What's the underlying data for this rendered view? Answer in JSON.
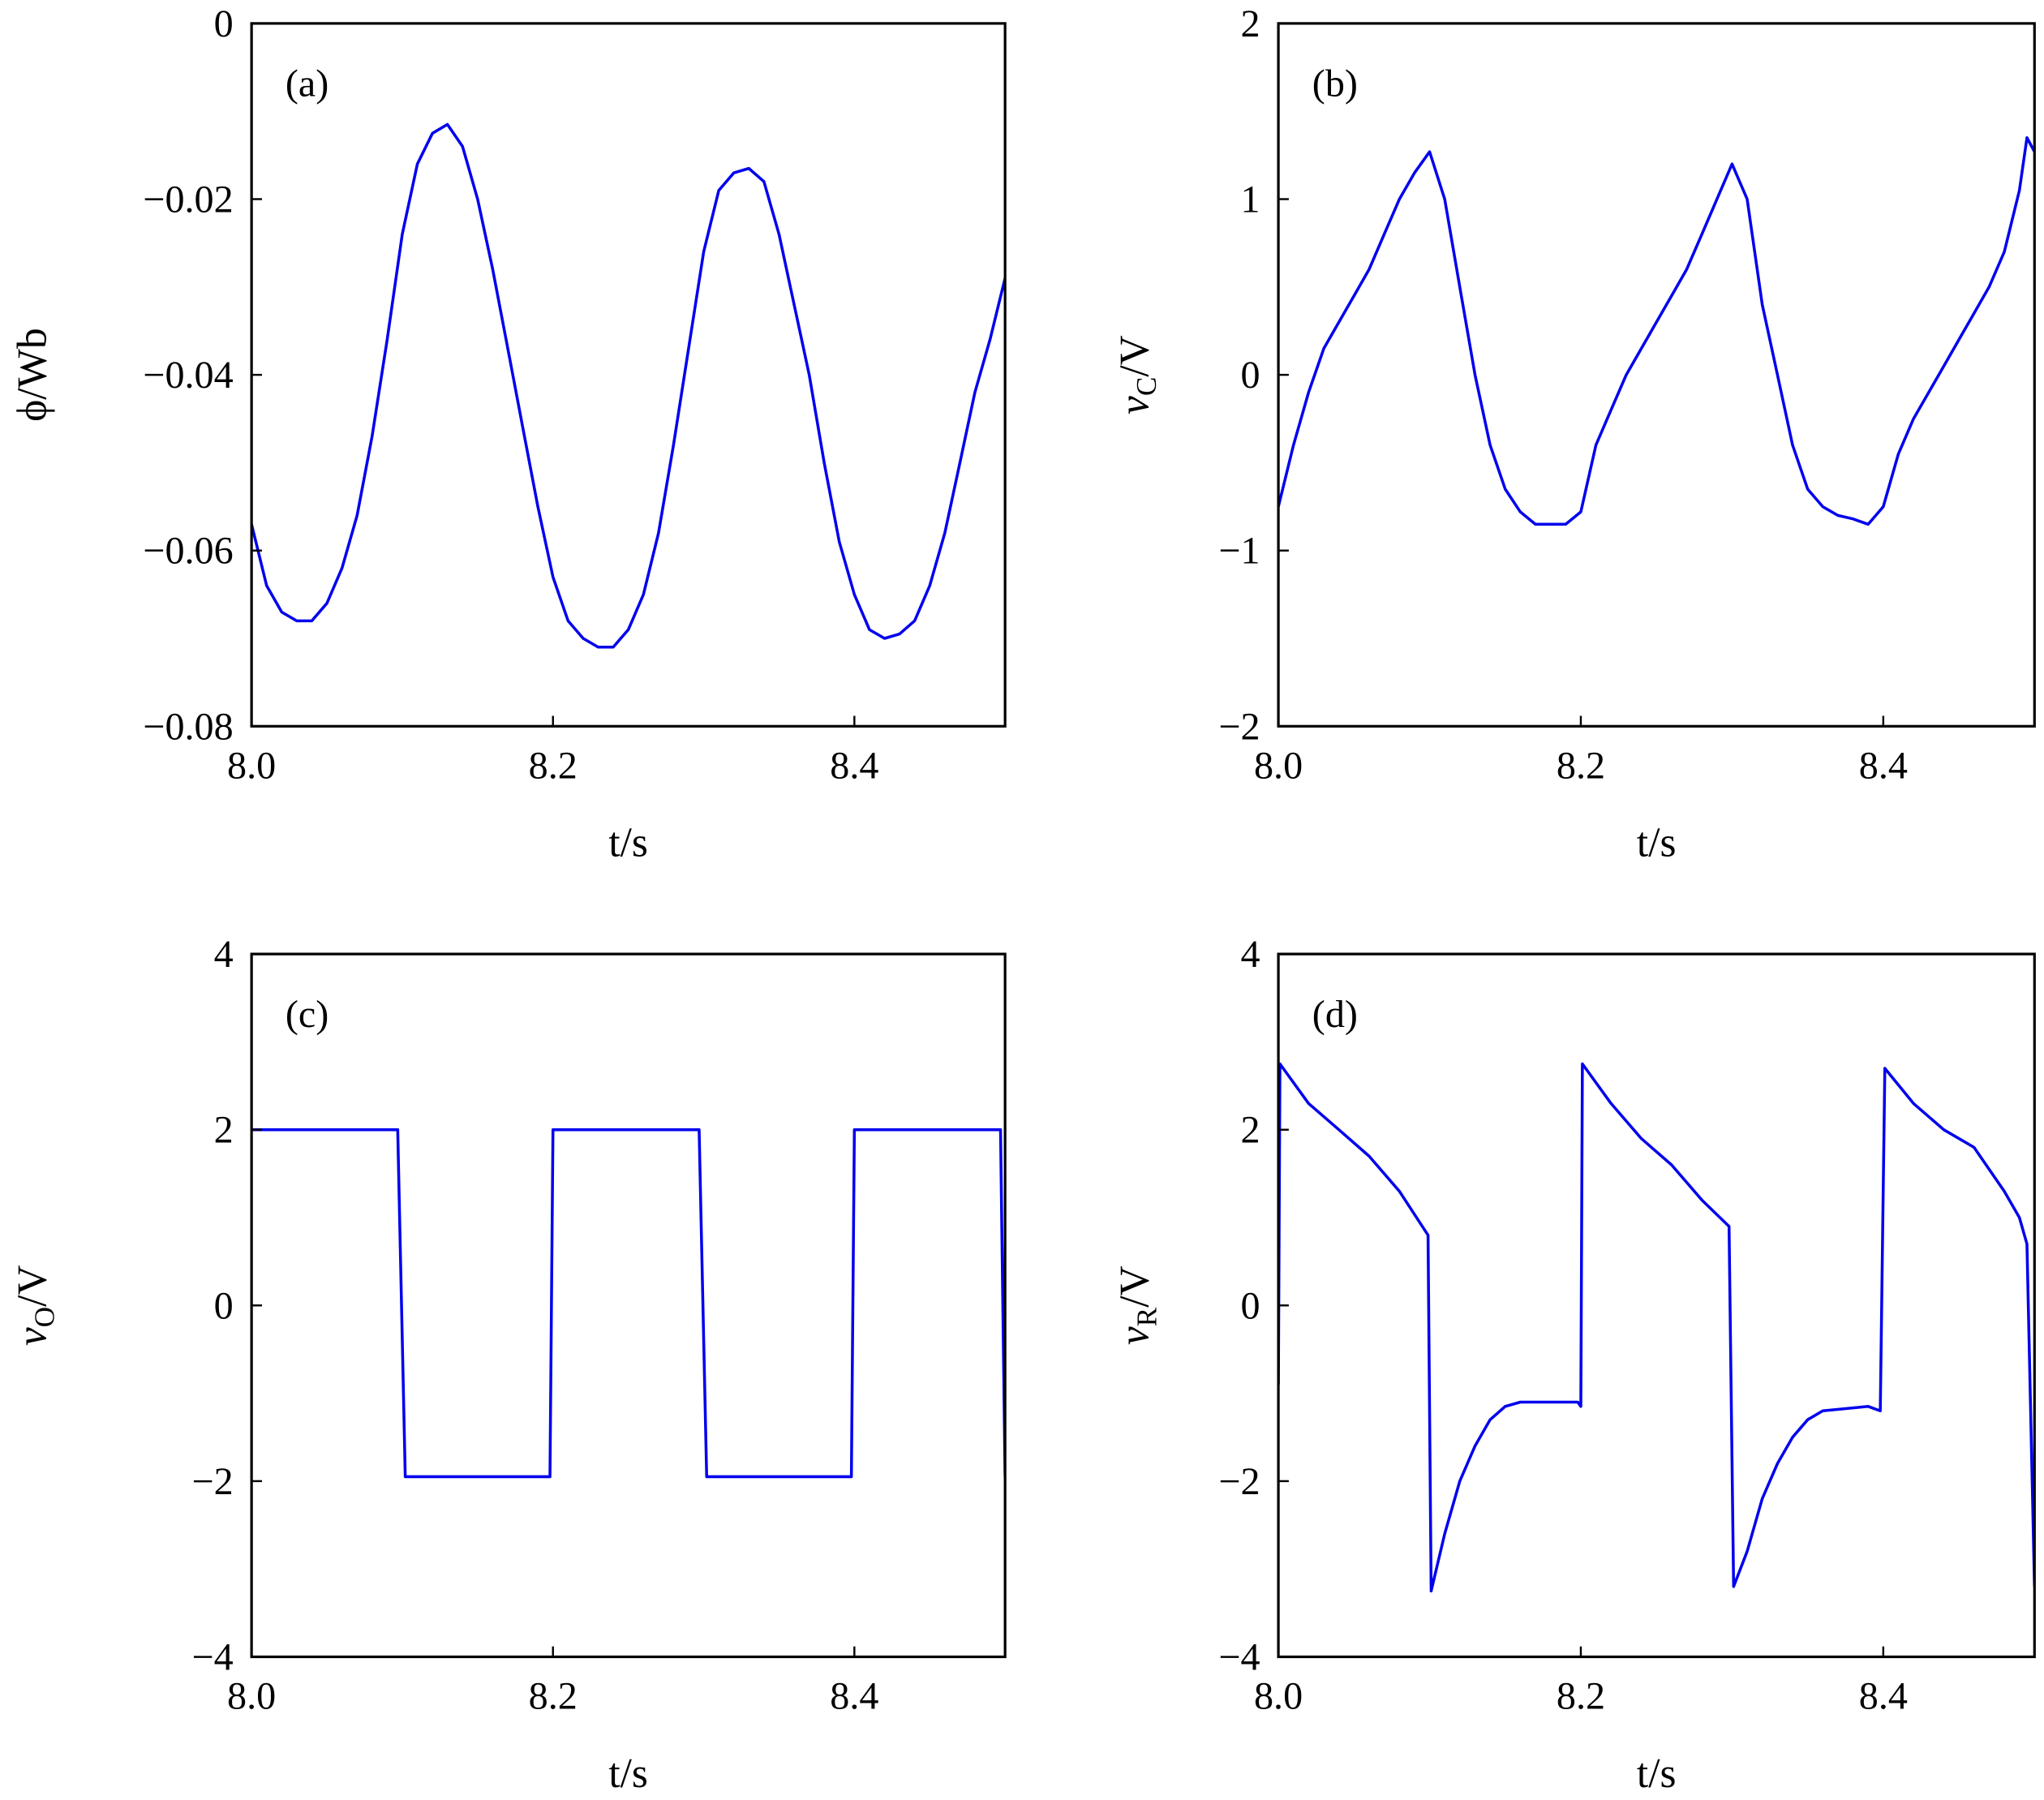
{
  "chart_data": [
    {
      "type": "line",
      "panel_label": "(a)",
      "xlabel": "t/s",
      "ylabel": "ϕ/Wb",
      "xlim": [
        8.0,
        8.5
      ],
      "ylim": [
        -0.08,
        0
      ],
      "xticks": [
        "8.0",
        "8.2",
        "8.4"
      ],
      "xtick_values": [
        8.0,
        8.2,
        8.4
      ],
      "yticks": [
        "0",
        "−0.02",
        "−0.04",
        "−0.06",
        "−0.08"
      ],
      "ytick_values": [
        0,
        -0.02,
        -0.04,
        -0.06,
        -0.08
      ],
      "grid": false,
      "color": "#0000ee",
      "x": [
        8.0,
        8.01,
        8.02,
        8.03,
        8.04,
        8.05,
        8.06,
        8.07,
        8.08,
        8.09,
        8.1,
        8.11,
        8.12,
        8.13,
        8.14,
        8.15,
        8.16,
        8.17,
        8.18,
        8.19,
        8.2,
        8.21,
        8.22,
        8.23,
        8.24,
        8.25,
        8.26,
        8.27,
        8.28,
        8.29,
        8.3,
        8.31,
        8.32,
        8.33,
        8.34,
        8.35,
        8.36,
        8.37,
        8.38,
        8.39,
        8.4,
        8.41,
        8.42,
        8.43,
        8.44,
        8.45,
        8.46,
        8.47,
        8.48,
        8.49,
        8.5
      ],
      "y": [
        -0.057,
        -0.064,
        -0.067,
        -0.068,
        -0.068,
        -0.066,
        -0.062,
        -0.056,
        -0.047,
        -0.036,
        -0.024,
        -0.016,
        -0.0125,
        -0.0115,
        -0.014,
        -0.02,
        -0.028,
        -0.037,
        -0.046,
        -0.055,
        -0.063,
        -0.068,
        -0.07,
        -0.071,
        -0.071,
        -0.069,
        -0.065,
        -0.058,
        -0.048,
        -0.037,
        -0.026,
        -0.019,
        -0.017,
        -0.0165,
        -0.018,
        -0.024,
        -0.032,
        -0.04,
        -0.05,
        -0.059,
        -0.065,
        -0.069,
        -0.07,
        -0.0695,
        -0.068,
        -0.064,
        -0.058,
        -0.05,
        -0.042,
        -0.036,
        -0.029
      ]
    },
    {
      "type": "line",
      "panel_label": "(b)",
      "xlabel": "t/s",
      "ylabel": "v_C/V",
      "ylabel_main": "v",
      "ylabel_sub": "C",
      "ylabel_unit": "/V",
      "xlim": [
        8.0,
        8.5
      ],
      "ylim": [
        -2,
        2
      ],
      "xticks": [
        "8.0",
        "8.2",
        "8.4"
      ],
      "xtick_values": [
        8.0,
        8.2,
        8.4
      ],
      "yticks": [
        "2",
        "1",
        "0",
        "−1",
        "−2"
      ],
      "ytick_values": [
        2,
        1,
        0,
        -1,
        -2
      ],
      "grid": false,
      "color": "#0000ee",
      "x": [
        8.0,
        8.01,
        8.02,
        8.03,
        8.04,
        8.05,
        8.06,
        8.07,
        8.08,
        8.09,
        8.1,
        8.11,
        8.12,
        8.13,
        8.14,
        8.15,
        8.16,
        8.17,
        8.19,
        8.2,
        8.21,
        8.22,
        8.23,
        8.24,
        8.25,
        8.26,
        8.27,
        8.28,
        8.29,
        8.3,
        8.31,
        8.32,
        8.33,
        8.34,
        8.35,
        8.36,
        8.37,
        8.38,
        8.39,
        8.4,
        8.41,
        8.42,
        8.43,
        8.44,
        8.45,
        8.46,
        8.47,
        8.48,
        8.49,
        8.495,
        8.5
      ],
      "y": [
        -0.75,
        -0.4,
        -0.1,
        0.15,
        0.3,
        0.45,
        0.6,
        0.8,
        1.0,
        1.15,
        1.27,
        1.0,
        0.5,
        0.0,
        -0.4,
        -0.65,
        -0.78,
        -0.85,
        -0.85,
        -0.78,
        -0.4,
        -0.2,
        0.0,
        0.15,
        0.3,
        0.45,
        0.6,
        0.8,
        1.0,
        1.2,
        1.0,
        0.4,
        0.0,
        -0.4,
        -0.65,
        -0.75,
        -0.8,
        -0.82,
        -0.85,
        -0.75,
        -0.45,
        -0.25,
        -0.1,
        0.05,
        0.2,
        0.35,
        0.5,
        0.7,
        1.05,
        1.35,
        1.27
      ]
    },
    {
      "type": "line",
      "panel_label": "(c)",
      "xlabel": "t/s",
      "ylabel": "v_O/V",
      "ylabel_main": "v",
      "ylabel_sub": "O",
      "ylabel_unit": "/V",
      "xlim": [
        8.0,
        8.5
      ],
      "ylim": [
        -4,
        4
      ],
      "xticks": [
        "8.0",
        "8.2",
        "8.4"
      ],
      "xtick_values": [
        8.0,
        8.2,
        8.4
      ],
      "yticks": [
        "4",
        "2",
        "0",
        "−2",
        "−4"
      ],
      "ytick_values": [
        4,
        2,
        0,
        -2,
        -4
      ],
      "grid": false,
      "color": "#0000ee",
      "x": [
        8.0,
        8.097,
        8.102,
        8.198,
        8.2,
        8.297,
        8.302,
        8.398,
        8.4,
        8.497,
        8.5
      ],
      "y": [
        2,
        2,
        -1.95,
        -1.95,
        2,
        2,
        -1.95,
        -1.95,
        2,
        2,
        -1.95
      ]
    },
    {
      "type": "line",
      "panel_label": "(d)",
      "xlabel": "t/s",
      "ylabel": "v_R/V",
      "ylabel_main": "v",
      "ylabel_sub": "R",
      "ylabel_unit": "/V",
      "xlim": [
        8.0,
        8.5
      ],
      "ylim": [
        -4,
        4
      ],
      "xticks": [
        "8.0",
        "8.2",
        "8.4"
      ],
      "xtick_values": [
        8.0,
        8.2,
        8.4
      ],
      "yticks": [
        "4",
        "2",
        "0",
        "−2",
        "−4"
      ],
      "ytick_values": [
        4,
        2,
        0,
        -2,
        -4
      ],
      "grid": false,
      "color": "#0000ee",
      "x": [
        8.0,
        8.001,
        8.02,
        8.04,
        8.06,
        8.08,
        8.099,
        8.101,
        8.11,
        8.12,
        8.13,
        8.14,
        8.15,
        8.16,
        8.198,
        8.2,
        8.201,
        8.22,
        8.24,
        8.26,
        8.28,
        8.298,
        8.301,
        8.31,
        8.32,
        8.33,
        8.34,
        8.35,
        8.36,
        8.39,
        8.398,
        8.401,
        8.42,
        8.44,
        8.46,
        8.48,
        8.49,
        8.495,
        8.5
      ],
      "y": [
        -0.9,
        2.75,
        2.3,
        2.0,
        1.7,
        1.3,
        0.8,
        -3.25,
        -2.6,
        -2.0,
        -1.6,
        -1.3,
        -1.15,
        -1.1,
        -1.1,
        -1.15,
        2.75,
        2.3,
        1.9,
        1.6,
        1.2,
        0.9,
        -3.2,
        -2.8,
        -2.2,
        -1.8,
        -1.5,
        -1.3,
        -1.2,
        -1.15,
        -1.2,
        2.7,
        2.3,
        2.0,
        1.8,
        1.3,
        1.0,
        0.7,
        -3.2
      ]
    }
  ]
}
